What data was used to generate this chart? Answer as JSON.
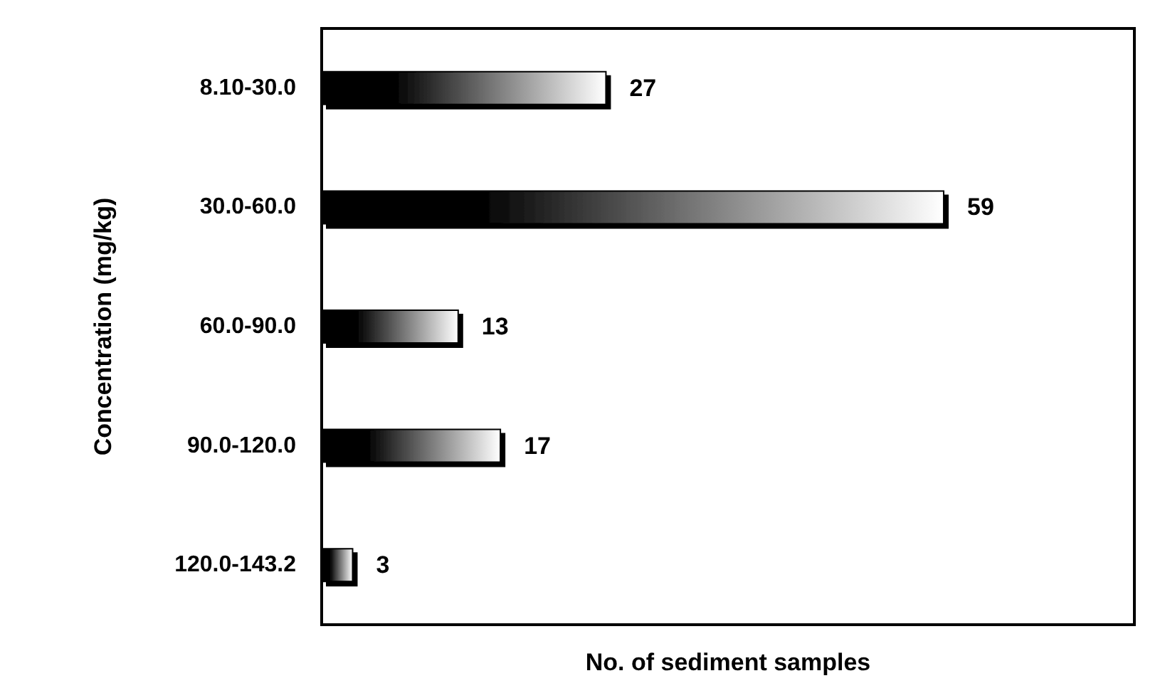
{
  "chart_data": {
    "type": "bar",
    "orientation": "horizontal",
    "xlabel": "No. of sediment samples",
    "ylabel": "Concentration (mg/kg)",
    "categories": [
      "8.10-30.0",
      "30.0-60.0",
      "60.0-90.0",
      "90.0-120.0",
      "120.0-143.2"
    ],
    "values": [
      27,
      59,
      13,
      17,
      3
    ],
    "color": "#000000",
    "xlim": [
      0,
      77
    ],
    "tick_labels": "y",
    "data_labels": true,
    "grid": false
  }
}
